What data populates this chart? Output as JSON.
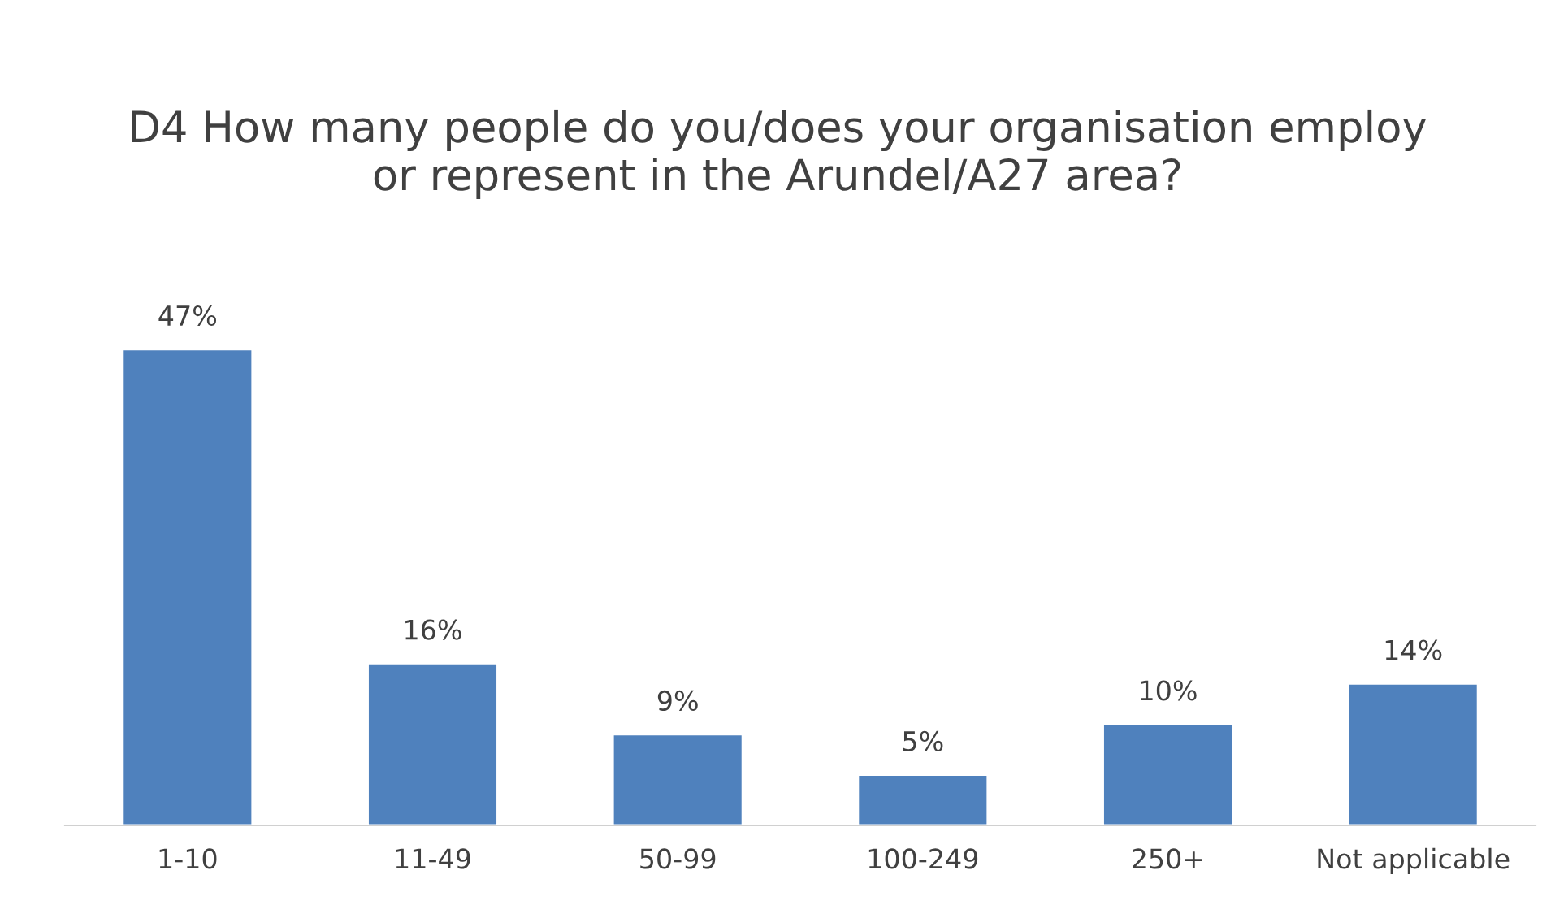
{
  "chart_data": {
    "type": "bar",
    "title": "D4 How many people do you/does your organisation employ or represent in the Arundel/A27 area?",
    "categories": [
      "1-10",
      "11-49",
      "50-99",
      "100-249",
      "250+",
      "Not applicable"
    ],
    "values": [
      47,
      16,
      9,
      5,
      10,
      14
    ],
    "value_labels": [
      "47%",
      "16%",
      "9%",
      "5%",
      "10%",
      "14%"
    ],
    "color": "#4f81bd",
    "grid": false,
    "legend": false
  }
}
